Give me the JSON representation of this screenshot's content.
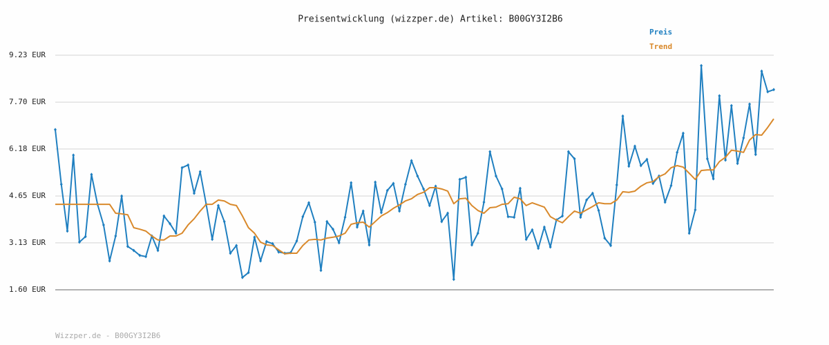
{
  "chart_data": {
    "type": "line",
    "title": "Preisentwicklung (wizzper.de) Artikel: B00GY3I2B6",
    "footer": "Wizzper.de - B00GY3I2B6",
    "ylim": [
      1.6,
      9.23
    ],
    "yticks": [
      {
        "value": 1.6,
        "label": "1.60 EUR"
      },
      {
        "value": 3.13,
        "label": "3.13 EUR"
      },
      {
        "value": 4.65,
        "label": "4.65 EUR"
      },
      {
        "value": 6.18,
        "label": "6.18 EUR"
      },
      {
        "value": 7.7,
        "label": "7.70 EUR"
      },
      {
        "value": 9.23,
        "label": "9.23 EUR"
      }
    ],
    "grid": true,
    "legend": "top-right",
    "series": [
      {
        "name": "Preis",
        "color": "#1f7fc0",
        "markers": true,
        "values": [
          6.81,
          5.03,
          3.51,
          5.98,
          3.15,
          3.33,
          5.35,
          4.38,
          3.71,
          2.54,
          3.35,
          4.65,
          3.01,
          2.88,
          2.72,
          2.68,
          3.35,
          2.88,
          4.0,
          3.75,
          3.44,
          5.57,
          5.66,
          4.74,
          5.44,
          4.38,
          3.24,
          4.34,
          3.82,
          2.79,
          3.04,
          2.0,
          2.16,
          3.31,
          2.54,
          3.17,
          3.1,
          2.83,
          2.79,
          2.81,
          3.19,
          3.98,
          4.43,
          3.8,
          2.23,
          3.82,
          3.57,
          3.13,
          3.96,
          5.08,
          3.64,
          4.16,
          3.06,
          5.1,
          4.11,
          4.83,
          5.06,
          4.16,
          5.03,
          5.8,
          5.3,
          4.88,
          4.34,
          4.97,
          3.82,
          4.09,
          1.94,
          5.19,
          5.26,
          3.06,
          3.44,
          4.45,
          6.09,
          5.3,
          4.88,
          3.98,
          3.96,
          4.9,
          3.24,
          3.55,
          2.95,
          3.64,
          2.99,
          3.87,
          4.0,
          6.09,
          5.86,
          3.96,
          4.52,
          4.74,
          4.18,
          3.28,
          3.04,
          5.01,
          7.25,
          5.62,
          6.27,
          5.64,
          5.84,
          5.06,
          5.3,
          4.45,
          4.99,
          6.07,
          6.69,
          3.44,
          4.2,
          8.89,
          5.86,
          5.21,
          7.91,
          5.82,
          7.59,
          5.71,
          6.54,
          7.64,
          6.0,
          8.71,
          8.04,
          8.11
        ]
      },
      {
        "name": "Trend",
        "color": "#d9892b",
        "markers": false,
        "values": [
          4.38,
          4.38,
          4.38,
          4.38,
          4.38,
          4.38,
          4.38,
          4.38,
          4.38,
          4.38,
          4.09,
          4.07,
          4.04,
          3.62,
          3.57,
          3.51,
          3.35,
          3.22,
          3.22,
          3.35,
          3.35,
          3.44,
          3.71,
          3.91,
          4.16,
          4.38,
          4.38,
          4.52,
          4.49,
          4.38,
          4.34,
          4.0,
          3.62,
          3.44,
          3.15,
          3.06,
          3.04,
          2.9,
          2.77,
          2.79,
          2.79,
          3.04,
          3.22,
          3.24,
          3.22,
          3.28,
          3.31,
          3.35,
          3.44,
          3.73,
          3.78,
          3.8,
          3.64,
          3.82,
          4.0,
          4.11,
          4.25,
          4.36,
          4.49,
          4.56,
          4.7,
          4.77,
          4.92,
          4.92,
          4.88,
          4.81,
          4.4,
          4.56,
          4.58,
          4.34,
          4.18,
          4.09,
          4.27,
          4.29,
          4.38,
          4.4,
          4.61,
          4.56,
          4.34,
          4.43,
          4.36,
          4.29,
          3.98,
          3.87,
          3.78,
          3.98,
          4.16,
          4.09,
          4.2,
          4.31,
          4.43,
          4.4,
          4.4,
          4.52,
          4.79,
          4.77,
          4.81,
          4.97,
          5.08,
          5.12,
          5.28,
          5.37,
          5.57,
          5.64,
          5.59,
          5.39,
          5.19,
          5.48,
          5.5,
          5.5,
          5.77,
          5.91,
          6.14,
          6.11,
          6.07,
          6.47,
          6.65,
          6.63,
          6.88,
          7.16
        ]
      }
    ]
  }
}
